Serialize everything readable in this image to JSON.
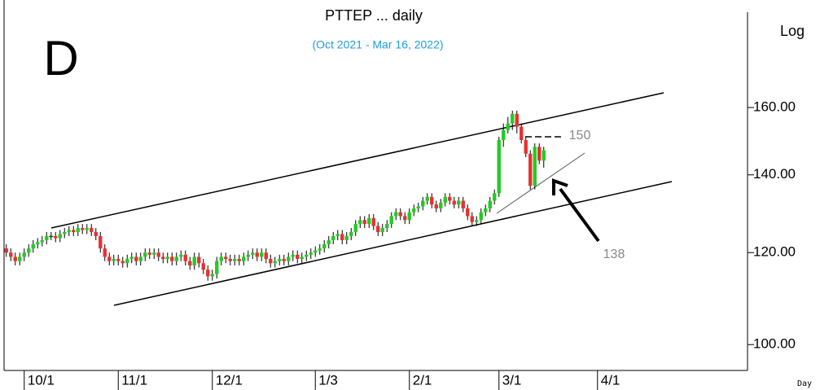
{
  "chart_data": {
    "type": "candlestick",
    "title": "PTTEP ... daily",
    "subtitle": "(Oct 2021 - Mar 16, 2022)",
    "period_label": "D",
    "scale_label": "Log",
    "x_label": "Day",
    "log": true,
    "up_color": "#22cc22",
    "down_color": "#e83030",
    "annotations": [
      "150",
      "138"
    ],
    "xlim": [
      -4.5,
      161.5
    ],
    "xticks": [
      {
        "value": 0,
        "label": "10/1"
      },
      {
        "value": 21,
        "label": "11/1"
      },
      {
        "value": 42,
        "label": "12/1"
      },
      {
        "value": 65,
        "label": "1/3"
      },
      {
        "value": 86,
        "label": "2/1"
      },
      {
        "value": 106,
        "label": "3/1"
      },
      {
        "value": 128,
        "label": "4/1"
      }
    ],
    "ylim": [
      95,
      198
    ],
    "yticks": [
      {
        "value": 100,
        "label": "100.00"
      },
      {
        "value": 120,
        "label": "120.00"
      },
      {
        "value": 140,
        "label": "140.00"
      },
      {
        "value": 160,
        "label": "160.00"
      }
    ],
    "x": [
      -4,
      -3,
      -2,
      -1,
      0,
      1,
      2,
      3,
      4,
      5,
      6,
      7,
      8,
      9,
      10,
      11,
      12,
      13,
      14,
      15,
      16,
      17,
      18,
      19,
      20,
      21,
      22,
      23,
      24,
      25,
      26,
      27,
      28,
      29,
      30,
      31,
      32,
      33,
      34,
      35,
      36,
      37,
      38,
      39,
      40,
      41,
      42,
      43,
      44,
      45,
      46,
      47,
      48,
      49,
      50,
      51,
      52,
      53,
      54,
      55,
      56,
      57,
      58,
      59,
      60,
      61,
      62,
      63,
      64,
      65,
      66,
      67,
      68,
      69,
      70,
      71,
      72,
      73,
      74,
      75,
      76,
      77,
      78,
      79,
      80,
      81,
      82,
      83,
      84,
      85,
      86,
      87,
      88,
      89,
      90,
      91,
      92,
      93,
      94,
      95,
      96,
      97,
      98,
      99,
      100,
      101,
      102,
      103,
      104,
      105,
      106,
      107,
      108,
      109,
      110,
      111,
      112,
      113,
      114,
      115,
      116
    ],
    "open": [
      121,
      120,
      119,
      118,
      119,
      120,
      121,
      122,
      122.5,
      123,
      124,
      124,
      123.5,
      124.5,
      125,
      125.5,
      125,
      126,
      125.5,
      126,
      125,
      124,
      121,
      119,
      118,
      118.5,
      118,
      117.5,
      118.5,
      119,
      118,
      119,
      120,
      119.5,
      120,
      119,
      118.5,
      119,
      118,
      119,
      119.5,
      118,
      117,
      119,
      117.5,
      116,
      114.5,
      115,
      118,
      119,
      118.5,
      118,
      118.5,
      118,
      119,
      119.5,
      120,
      119,
      120,
      118.5,
      117.5,
      118,
      118.5,
      118,
      119,
      119.5,
      118.5,
      119,
      119.5,
      120,
      120.5,
      121,
      122,
      123,
      124,
      124.5,
      123,
      124,
      125,
      127,
      128,
      127,
      128.5,
      126.5,
      125,
      126,
      127,
      129,
      130,
      129,
      128,
      130,
      131,
      131.5,
      133,
      134,
      132,
      131,
      132.5,
      134,
      133,
      132,
      133,
      131,
      129,
      127.5,
      128,
      130,
      131,
      133,
      135,
      150,
      153,
      155,
      158,
      154,
      150,
      146,
      137,
      148,
      144
    ],
    "high": [
      122,
      121,
      120,
      120,
      121,
      122,
      123,
      123.5,
      124,
      125,
      125,
      125,
      125.5,
      126,
      126.5,
      126.5,
      127,
      127,
      127,
      127,
      126,
      125,
      122,
      120,
      119.5,
      119.5,
      119,
      119.5,
      120,
      120,
      120,
      121,
      121,
      121,
      121,
      120,
      120,
      120,
      120,
      120.5,
      120.5,
      119,
      120,
      120,
      118.5,
      117,
      116,
      119,
      120,
      120,
      119.5,
      119.5,
      119.5,
      120,
      120.5,
      121,
      121,
      121,
      121,
      119.5,
      119,
      119.5,
      119.5,
      120,
      120.5,
      120.5,
      120,
      120.5,
      121,
      121.5,
      122,
      123,
      124,
      125,
      125.5,
      125.5,
      125,
      126,
      128,
      129,
      129,
      129.5,
      129.5,
      127.5,
      127,
      128,
      130,
      131,
      131,
      130,
      131,
      132,
      132.5,
      134,
      135,
      135,
      133,
      133.5,
      135,
      135,
      134,
      134,
      134,
      132,
      130,
      129,
      131,
      132,
      134,
      136,
      151,
      155,
      157,
      159,
      159,
      155,
      151,
      147,
      149,
      149,
      148
    ],
    "low": [
      119,
      118,
      117,
      117,
      118,
      119,
      120,
      121,
      121.5,
      122,
      123,
      122.5,
      122.5,
      123.5,
      124,
      124,
      124,
      124.5,
      124.5,
      124,
      123,
      120,
      118,
      117,
      117,
      117,
      116.5,
      116.5,
      117.5,
      117,
      117,
      118,
      118.5,
      118.5,
      118,
      117.5,
      117.5,
      117,
      117,
      118,
      117,
      116,
      116,
      116.5,
      115,
      113.5,
      113.5,
      114,
      117,
      117.5,
      117,
      117,
      117,
      117,
      118,
      118.5,
      118,
      118,
      117.5,
      116.5,
      116.5,
      117,
      117,
      117,
      118,
      117.5,
      117.5,
      118,
      118.5,
      119,
      119.5,
      120,
      121,
      122,
      123,
      122,
      122,
      123,
      124,
      126,
      126,
      126,
      125.5,
      124,
      124,
      125,
      126,
      128,
      128,
      127,
      127,
      129,
      130,
      130.5,
      132,
      131,
      130,
      130,
      131.5,
      132,
      131,
      131,
      130,
      128,
      126.5,
      126.5,
      127,
      129,
      130,
      132,
      134,
      148,
      152,
      153,
      152,
      149,
      145,
      136,
      136,
      143,
      142
    ],
    "close": [
      120,
      119,
      118,
      119,
      120,
      121,
      122,
      122.5,
      123,
      124,
      124,
      123.5,
      124.5,
      125,
      125.5,
      125,
      126,
      125.5,
      126,
      125,
      124,
      121,
      119,
      118,
      118.5,
      118,
      117.5,
      118.5,
      119,
      118,
      119,
      120,
      119.5,
      120,
      119,
      118.5,
      119,
      118,
      119,
      119.5,
      118,
      117,
      119,
      117.5,
      116,
      114.5,
      115,
      118,
      119,
      118.5,
      118,
      118.5,
      118,
      119,
      119.5,
      120,
      119,
      120,
      118.5,
      117.5,
      118,
      118.5,
      118,
      119,
      119.5,
      118.5,
      119,
      119.5,
      120,
      120.5,
      121,
      122,
      123,
      124,
      124.5,
      123,
      124,
      125,
      127,
      128,
      127,
      128.5,
      126.5,
      125,
      126,
      127,
      129,
      130,
      129,
      128,
      130,
      131,
      131.5,
      133,
      134,
      132,
      131,
      132.5,
      134,
      133,
      132,
      133,
      131,
      129,
      127.5,
      128,
      130,
      131,
      133,
      135,
      150,
      153,
      155,
      158,
      154,
      150,
      146,
      137,
      148,
      144,
      147
    ]
  }
}
